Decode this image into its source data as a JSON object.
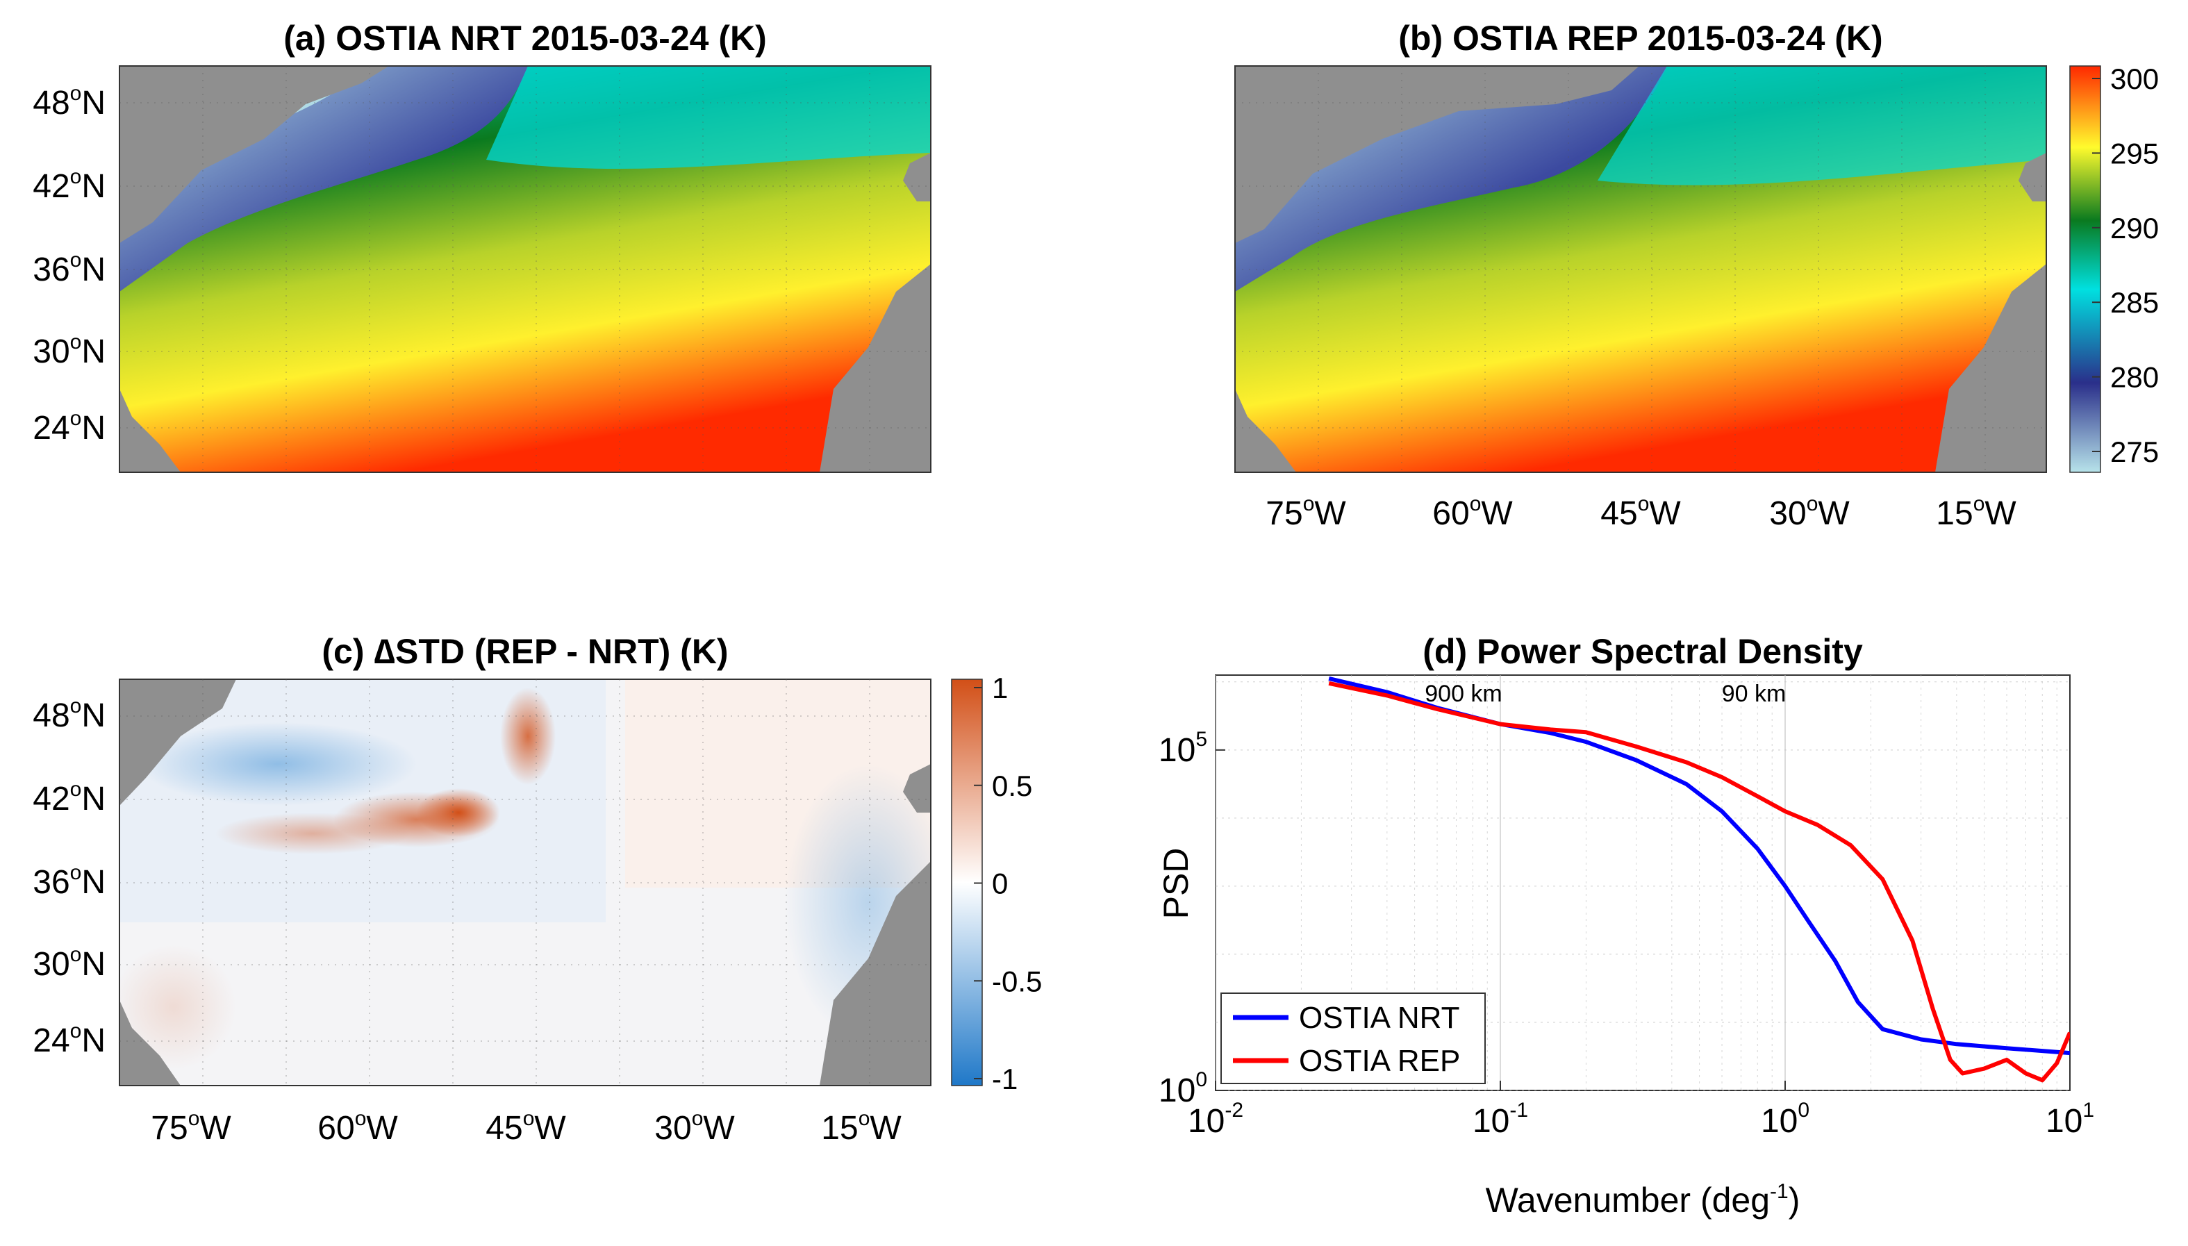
{
  "colors": {
    "land": "#8f8f8f",
    "nrt_line": "#0000ff",
    "rep_line": "#ff0000",
    "sst_scale": [
      "#b7e3ea",
      "#2a2f8a",
      "#00e0e0",
      "#0a7a1f",
      "#fffb2d",
      "#ff2800"
    ],
    "diff_scale": [
      "#1f78c8",
      "#ffffff",
      "#d24f17"
    ]
  },
  "lat_labels": [
    "48",
    "42",
    "36",
    "30",
    "24"
  ],
  "lon_labels": [
    "75",
    "60",
    "45",
    "30",
    "15"
  ],
  "panel_a": {
    "title": "(a) OSTIA NRT 2015-03-24 (K)"
  },
  "panel_b": {
    "title": "(b) OSTIA REP 2015-03-24 (K)",
    "colorbar_ticks": [
      "300",
      "295",
      "290",
      "285",
      "280",
      "275"
    ]
  },
  "panel_c": {
    "title": "(c) ∆STD (REP - NRT) (K)",
    "colorbar_ticks": [
      "1",
      "0.5",
      "0",
      "-0.5",
      "-1"
    ]
  },
  "chart_data": {
    "type": "line",
    "title": "(d) Power Spectral Density",
    "xlabel": "Wavenumber (deg",
    "xlabel_sup": "-1",
    "xlabel_end": ")",
    "ylabel": "PSD",
    "xscale": "log",
    "yscale": "log",
    "xlim": [
      0.01,
      10
    ],
    "ylim_log10": [
      0,
      6.1
    ],
    "x_ticks": [
      {
        "base": "10",
        "exp": "-2"
      },
      {
        "base": "10",
        "exp": "-1"
      },
      {
        "base": "10",
        "exp": "0"
      },
      {
        "base": "10",
        "exp": "1"
      }
    ],
    "y_ticks": [
      {
        "base": "10",
        "exp": "0"
      },
      {
        "base": "10",
        "exp": "5"
      }
    ],
    "annotations": [
      "900 km",
      "90 km"
    ],
    "series": [
      {
        "name": "OSTIA NRT",
        "x": [
          0.025,
          0.04,
          0.06,
          0.1,
          0.15,
          0.2,
          0.3,
          0.45,
          0.6,
          0.8,
          1.0,
          1.2,
          1.5,
          1.8,
          2.2,
          3.0,
          4.0,
          6.0,
          8.0,
          10.0
        ],
        "log10_y": [
          6.05,
          5.85,
          5.62,
          5.38,
          5.25,
          5.12,
          4.85,
          4.5,
          4.1,
          3.55,
          3.0,
          2.5,
          1.9,
          1.3,
          0.9,
          0.75,
          0.68,
          0.62,
          0.58,
          0.55
        ]
      },
      {
        "name": "OSTIA REP",
        "x": [
          0.025,
          0.04,
          0.06,
          0.1,
          0.15,
          0.2,
          0.3,
          0.45,
          0.6,
          0.8,
          1.0,
          1.3,
          1.7,
          2.2,
          2.8,
          3.3,
          3.8,
          4.2,
          5.0,
          6.0,
          7.0,
          8.0,
          9.0,
          10.0
        ],
        "log10_y": [
          5.98,
          5.8,
          5.6,
          5.38,
          5.3,
          5.26,
          5.05,
          4.82,
          4.6,
          4.32,
          4.1,
          3.9,
          3.6,
          3.1,
          2.2,
          1.2,
          0.45,
          0.25,
          0.32,
          0.45,
          0.25,
          0.15,
          0.4,
          0.85
        ]
      }
    ]
  }
}
